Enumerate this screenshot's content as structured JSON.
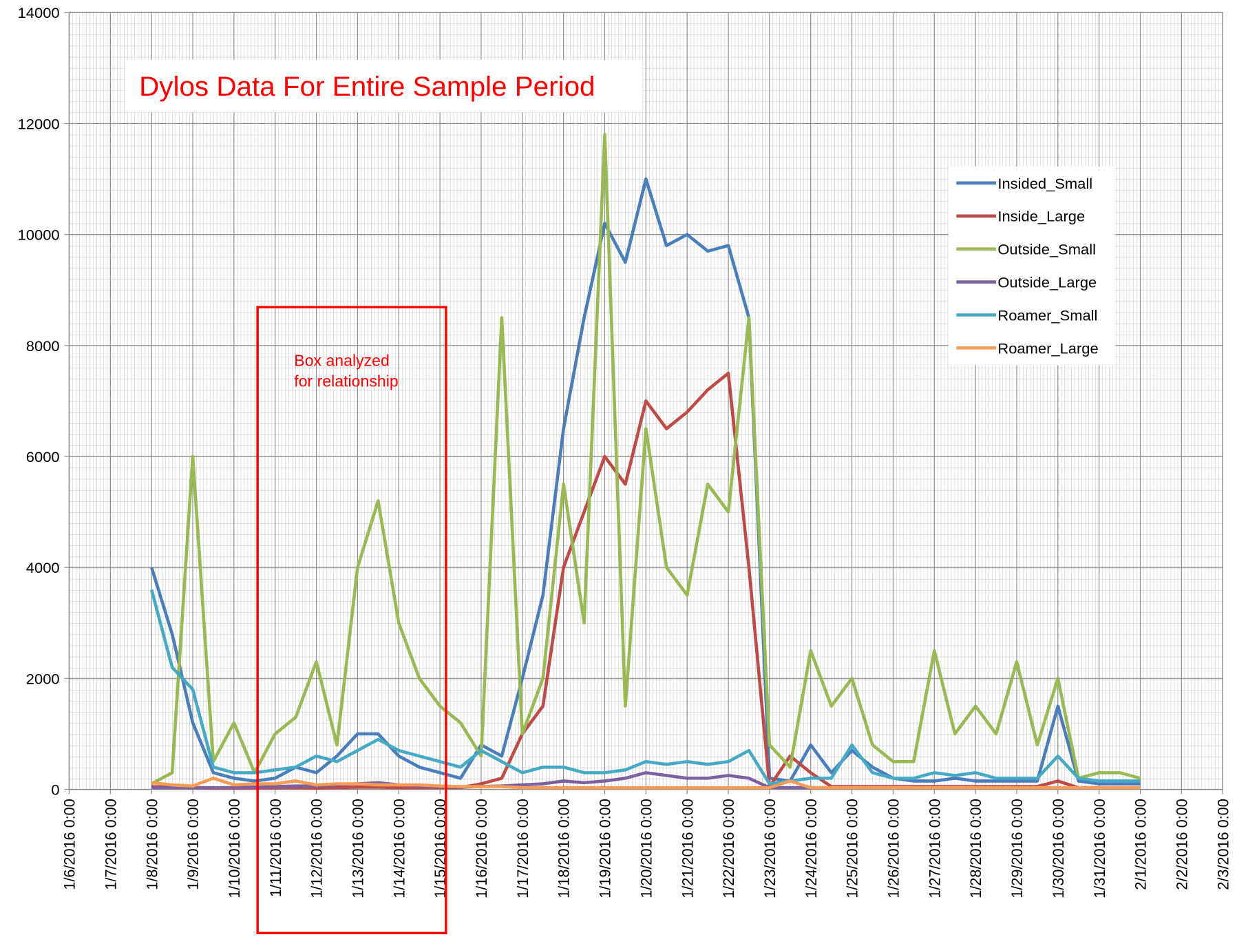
{
  "chart_data": {
    "type": "line",
    "title": "Dylos Data For Entire Sample Period",
    "annotation": [
      "Box analyzed",
      "for relationship"
    ],
    "x": [
      "2016-01-08T00:00",
      "2016-01-08T12:00",
      "2016-01-09T00:00",
      "2016-01-09T12:00",
      "2016-01-10T00:00",
      "2016-01-10T12:00",
      "2016-01-11T00:00",
      "2016-01-11T12:00",
      "2016-01-12T00:00",
      "2016-01-12T12:00",
      "2016-01-13T00:00",
      "2016-01-13T12:00",
      "2016-01-14T00:00",
      "2016-01-14T12:00",
      "2016-01-15T00:00",
      "2016-01-15T12:00",
      "2016-01-16T00:00",
      "2016-01-16T12:00",
      "2016-01-17T00:00",
      "2016-01-17T12:00",
      "2016-01-18T00:00",
      "2016-01-18T12:00",
      "2016-01-19T00:00",
      "2016-01-19T12:00",
      "2016-01-20T00:00",
      "2016-01-20T12:00",
      "2016-01-21T00:00",
      "2016-01-21T12:00",
      "2016-01-22T00:00",
      "2016-01-22T12:00",
      "2016-01-23T00:00",
      "2016-01-23T12:00",
      "2016-01-24T00:00",
      "2016-01-24T12:00",
      "2016-01-25T00:00",
      "2016-01-25T12:00",
      "2016-01-26T00:00",
      "2016-01-26T12:00",
      "2016-01-27T00:00",
      "2016-01-27T12:00",
      "2016-01-28T00:00",
      "2016-01-28T12:00",
      "2016-01-29T00:00",
      "2016-01-29T12:00",
      "2016-01-30T00:00",
      "2016-01-30T12:00",
      "2016-01-31T00:00",
      "2016-01-31T12:00",
      "2016-02-01T00:00"
    ],
    "series": [
      {
        "name": "Insided_Small",
        "color": "#4a7ebb",
        "values": [
          4000,
          2800,
          1200,
          300,
          200,
          150,
          200,
          400,
          300,
          600,
          1000,
          1000,
          600,
          400,
          300,
          200,
          800,
          600,
          2000,
          3500,
          6500,
          8500,
          10200,
          9500,
          11000,
          9800,
          10000,
          9700,
          9800,
          8500,
          200,
          150,
          800,
          300,
          700,
          400,
          200,
          150,
          150,
          200,
          150,
          150,
          150,
          150,
          1500,
          150,
          100,
          100,
          100
        ]
      },
      {
        "name": "Inside_Large",
        "color": "#be4b48",
        "values": [
          50,
          40,
          30,
          20,
          20,
          20,
          30,
          30,
          20,
          30,
          40,
          40,
          30,
          30,
          30,
          30,
          100,
          200,
          1000,
          1500,
          4000,
          5000,
          6000,
          5500,
          7000,
          6500,
          6800,
          7200,
          7500,
          4000,
          50,
          600,
          300,
          50,
          50,
          50,
          50,
          50,
          50,
          50,
          50,
          50,
          50,
          50,
          150,
          30,
          30,
          30,
          30
        ]
      },
      {
        "name": "Outside_Small",
        "color": "#98b954",
        "values": [
          100,
          300,
          6000,
          500,
          1200,
          300,
          1000,
          1300,
          2300,
          800,
          4000,
          5200,
          3000,
          2000,
          1500,
          1200,
          600,
          8500,
          1000,
          2000,
          5500,
          3000,
          11800,
          1500,
          6500,
          4000,
          3500,
          5500,
          5000,
          8500,
          800,
          400,
          2500,
          1500,
          2000,
          800,
          500,
          500,
          2500,
          1000,
          1500,
          1000,
          2300,
          800,
          2000,
          200,
          300,
          300,
          200
        ]
      },
      {
        "name": "Outside_Large",
        "color": "#7d60a0",
        "values": [
          30,
          30,
          30,
          30,
          30,
          40,
          50,
          60,
          60,
          80,
          100,
          120,
          80,
          60,
          50,
          40,
          50,
          60,
          80,
          100,
          150,
          120,
          150,
          200,
          300,
          250,
          200,
          200,
          250,
          200,
          30,
          30,
          30,
          30,
          30,
          30,
          30,
          30,
          30,
          30,
          30,
          30,
          30,
          30,
          30,
          30,
          30,
          30,
          30
        ]
      },
      {
        "name": "Roamer_Small",
        "color": "#46aac5",
        "values": [
          3600,
          2200,
          1800,
          400,
          300,
          300,
          350,
          400,
          600,
          500,
          700,
          900,
          700,
          600,
          500,
          400,
          700,
          500,
          300,
          400,
          400,
          300,
          300,
          350,
          500,
          450,
          500,
          450,
          500,
          700,
          100,
          150,
          200,
          200,
          800,
          300,
          200,
          200,
          300,
          250,
          300,
          200,
          200,
          200,
          600,
          200,
          150,
          150,
          150
        ]
      },
      {
        "name": "Roamer_Large",
        "color": "#f59d56",
        "values": [
          120,
          80,
          60,
          200,
          80,
          100,
          100,
          150,
          80,
          100,
          100,
          80,
          80,
          80,
          60,
          50,
          50,
          50,
          30,
          30,
          30,
          30,
          30,
          30,
          30,
          30,
          30,
          30,
          30,
          30,
          30,
          150,
          30,
          30,
          30,
          30,
          30,
          30,
          30,
          30,
          30,
          30,
          30,
          30,
          30,
          30,
          30,
          30,
          30
        ]
      }
    ],
    "xlim": [
      "2016-01-06T00:00",
      "2016-02-03T00:00"
    ],
    "xticks": [
      {
        "value": "2016-01-06T00:00",
        "label": "1/6/2016 0:00"
      },
      {
        "value": "2016-01-07T00:00",
        "label": "1/7/2016 0:00"
      },
      {
        "value": "2016-01-08T00:00",
        "label": "1/8/2016 0:00"
      },
      {
        "value": "2016-01-09T00:00",
        "label": "1/9/2016 0:00"
      },
      {
        "value": "2016-01-10T00:00",
        "label": "1/10/2016 0:00"
      },
      {
        "value": "2016-01-11T00:00",
        "label": "1/11/2016 0:00"
      },
      {
        "value": "2016-01-12T00:00",
        "label": "1/12/2016 0:00"
      },
      {
        "value": "2016-01-13T00:00",
        "label": "1/13/2016 0:00"
      },
      {
        "value": "2016-01-14T00:00",
        "label": "1/14/2016 0:00"
      },
      {
        "value": "2016-01-15T00:00",
        "label": "1/15/2016 0:00"
      },
      {
        "value": "2016-01-16T00:00",
        "label": "1/16/2016 0:00"
      },
      {
        "value": "2016-01-17T00:00",
        "label": "1/17/2016 0:00"
      },
      {
        "value": "2016-01-18T00:00",
        "label": "1/18/2016 0:00"
      },
      {
        "value": "2016-01-19T00:00",
        "label": "1/19/2016 0:00"
      },
      {
        "value": "2016-01-20T00:00",
        "label": "1/20/2016 0:00"
      },
      {
        "value": "2016-01-21T00:00",
        "label": "1/21/2016 0:00"
      },
      {
        "value": "2016-01-22T00:00",
        "label": "1/22/2016 0:00"
      },
      {
        "value": "2016-01-23T00:00",
        "label": "1/23/2016 0:00"
      },
      {
        "value": "2016-01-24T00:00",
        "label": "1/24/2016 0:00"
      },
      {
        "value": "2016-01-25T00:00",
        "label": "1/25/2016 0:00"
      },
      {
        "value": "2016-01-26T00:00",
        "label": "1/26/2016 0:00"
      },
      {
        "value": "2016-01-27T00:00",
        "label": "1/27/2016 0:00"
      },
      {
        "value": "2016-01-28T00:00",
        "label": "1/28/2016 0:00"
      },
      {
        "value": "2016-01-29T00:00",
        "label": "1/29/2016 0:00"
      },
      {
        "value": "2016-01-30T00:00",
        "label": "1/30/2016 0:00"
      },
      {
        "value": "2016-01-31T00:00",
        "label": "1/31/2016 0:00"
      },
      {
        "value": "2016-02-01T00:00",
        "label": "2/1/2016 0:00"
      },
      {
        "value": "2016-02-02T00:00",
        "label": "2/2/2016 0:00"
      },
      {
        "value": "2016-02-03T00:00",
        "label": "2/3/2016 0:00"
      }
    ],
    "ylim": [
      0,
      14000
    ],
    "yticks": [
      0,
      2000,
      4000,
      6000,
      8000,
      10000,
      12000,
      14000
    ],
    "grid": true,
    "legend": "upper right"
  }
}
